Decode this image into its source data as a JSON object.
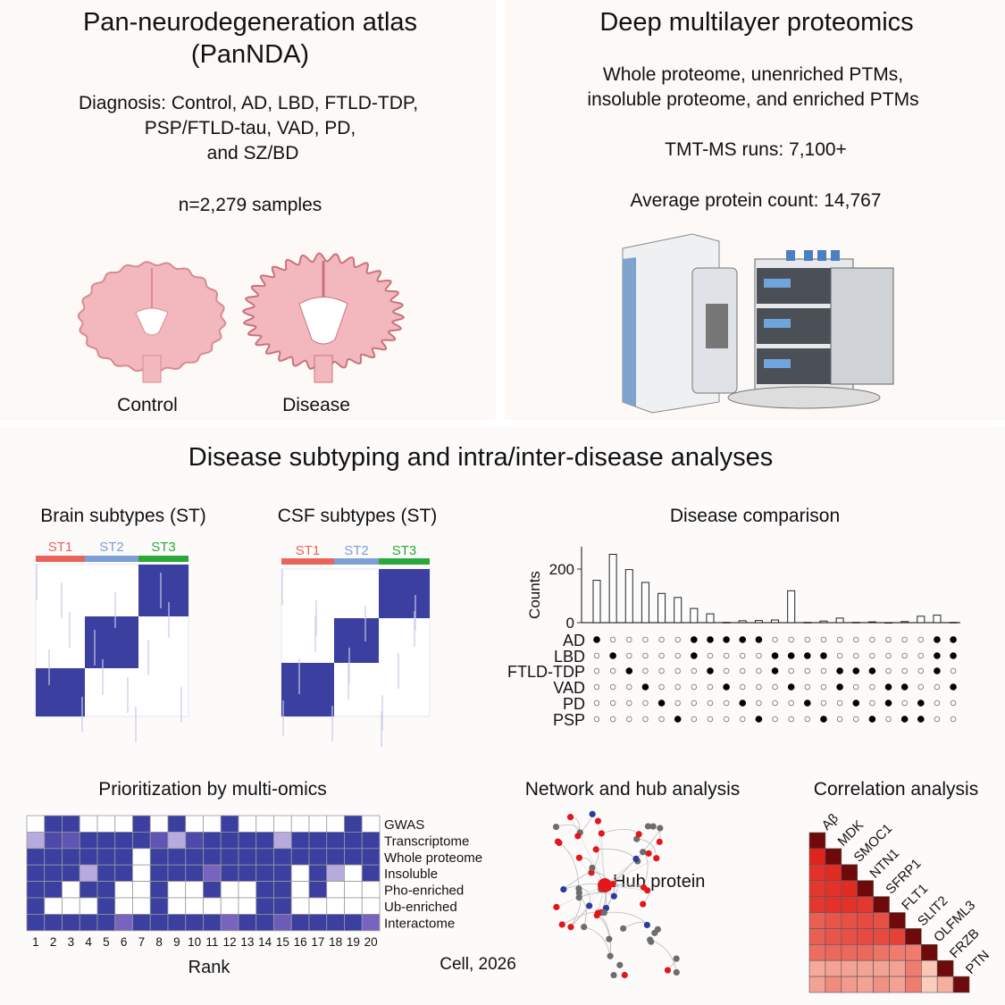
{
  "atlas": {
    "title_line1": "Pan-neurodegeneration atlas",
    "title_line2": "(PanNDA)",
    "diagnosis_line1": "Diagnosis: Control, AD, LBD, FTLD-TDP,",
    "diagnosis_line2": "PSP/FTLD-tau, VAD, PD,",
    "diagnosis_line3": "and SZ/BD",
    "samples": "n=2,279 samples",
    "brain_labels": [
      "Control",
      "Disease"
    ],
    "brain_color": "#f2b8bd"
  },
  "proteomics": {
    "title": "Deep multilayer proteomics",
    "line1": "Whole proteome, unenriched PTMs,",
    "line2": "insoluble proteome, and enriched PTMs",
    "runs": "TMT-MS runs: 7,100+",
    "avg_count": "Average protein count: 14,767"
  },
  "subtyping": {
    "title": "Disease subtyping and intra/inter-disease analyses",
    "brain_title": "Brain subtypes (ST)",
    "csf_title": "CSF subtypes (ST)",
    "subtypes": [
      "ST1",
      "ST2",
      "ST3"
    ],
    "subtype_colors": [
      "#e8635c",
      "#7b9fd6",
      "#2aa83a"
    ],
    "heatmap_color": "#3a3fa0"
  },
  "comparison": {
    "title": "Disease comparison",
    "ylabel": "Counts",
    "yticks": [
      0,
      200
    ],
    "ylim": [
      0,
      270
    ],
    "sets": [
      "AD",
      "LBD",
      "FTLD-TDP",
      "VAD",
      "PD",
      "PSP"
    ],
    "counts": [
      158,
      255,
      198,
      150,
      109,
      94,
      53,
      33,
      1,
      7,
      8,
      10,
      119,
      1,
      6,
      17,
      1,
      3,
      0,
      4,
      24,
      28,
      1
    ],
    "memberships": [
      [
        "AD"
      ],
      [
        "LBD"
      ],
      [
        "FTLD-TDP"
      ],
      [
        "VAD"
      ],
      [
        "PD"
      ],
      [
        "PSP"
      ],
      [
        "AD",
        "LBD"
      ],
      [
        "AD",
        "FTLD-TDP"
      ],
      [
        "AD",
        "VAD"
      ],
      [
        "AD",
        "PD"
      ],
      [
        "AD",
        "PSP"
      ],
      [
        "LBD",
        "FTLD-TDP"
      ],
      [
        "LBD",
        "VAD"
      ],
      [
        "LBD",
        "PD"
      ],
      [
        "LBD",
        "PSP"
      ],
      [
        "FTLD-TDP",
        "VAD"
      ],
      [
        "FTLD-TDP",
        "PD"
      ],
      [
        "FTLD-TDP",
        "PSP"
      ],
      [
        "VAD",
        "PD"
      ],
      [
        "VAD",
        "PSP"
      ],
      [
        "PD",
        "PSP"
      ],
      [
        "AD",
        "LBD",
        "FTLD-TDP"
      ],
      [
        "AD",
        "LBD",
        "VAD"
      ]
    ]
  },
  "prioritization": {
    "title": "Prioritization by multi-omics",
    "xlabel": "Rank",
    "ranks": [
      "1",
      "2",
      "3",
      "4",
      "5",
      "6",
      "7",
      "8",
      "9",
      "10",
      "11",
      "12",
      "13",
      "14",
      "15",
      "16",
      "17",
      "18",
      "19",
      "20"
    ],
    "rows": [
      "GWAS",
      "Transcriptome",
      "Whole proteome",
      "Insoluble",
      "Pho-enriched",
      "Ub-enriched",
      "Interactome"
    ],
    "values": [
      [
        0,
        1,
        1,
        0,
        0,
        0,
        1,
        0,
        1,
        0,
        0,
        1,
        0,
        0,
        0,
        0,
        0,
        0,
        1,
        0
      ],
      [
        0.3,
        0.85,
        0.7,
        1,
        1,
        1,
        1,
        0.7,
        0.3,
        0.85,
        1,
        1,
        1,
        1,
        0.3,
        1,
        1,
        1,
        1,
        1
      ],
      [
        1,
        1,
        1,
        1,
        1,
        1,
        0,
        1,
        1,
        1,
        1,
        1,
        1,
        1,
        1,
        1,
        1,
        1,
        1,
        1
      ],
      [
        1,
        1,
        1,
        0.3,
        1,
        1,
        0,
        1,
        1,
        1,
        0.5,
        1,
        1,
        1,
        1,
        0,
        1,
        0.3,
        0,
        1
      ],
      [
        1,
        1,
        0,
        1,
        1,
        0,
        0,
        1,
        0,
        0,
        1,
        0,
        0,
        1,
        1,
        0,
        1,
        0,
        0,
        0
      ],
      [
        1,
        0,
        0,
        0,
        1,
        0,
        0,
        1,
        0,
        0,
        0,
        0,
        0,
        1,
        1,
        0,
        0,
        0,
        0,
        0
      ],
      [
        1,
        1,
        1,
        1,
        1,
        0.5,
        1,
        1,
        1,
        1,
        1,
        0.5,
        1,
        1,
        0.6,
        1,
        1,
        1,
        1,
        0.5
      ]
    ]
  },
  "network": {
    "title": "Network and hub analysis",
    "hub_label": "Hub protein",
    "node_colors": [
      "#e3161b",
      "#6d6d6d",
      "#2f3a9e"
    ]
  },
  "correlation": {
    "title": "Correlation analysis",
    "labels": [
      "Aβ",
      "MDK",
      "SMOC1",
      "NTN1",
      "SFRP1",
      "FLT1",
      "SLIT2",
      "OLFML3",
      "FRZB",
      "PTN"
    ],
    "values": [
      [
        1
      ],
      [
        0.85,
        1
      ],
      [
        0.8,
        0.82,
        1
      ],
      [
        0.78,
        0.8,
        0.82,
        1
      ],
      [
        0.78,
        0.8,
        0.8,
        0.78,
        1
      ],
      [
        0.65,
        0.68,
        0.7,
        0.72,
        0.7,
        1
      ],
      [
        0.65,
        0.68,
        0.7,
        0.72,
        0.72,
        0.75,
        1
      ],
      [
        0.6,
        0.62,
        0.62,
        0.62,
        0.58,
        0.55,
        0.55,
        1
      ],
      [
        0.4,
        0.42,
        0.42,
        0.42,
        0.42,
        0.42,
        0.55,
        0.3,
        1
      ],
      [
        0.42,
        0.5,
        0.45,
        0.42,
        0.48,
        0.42,
        0.55,
        0.28,
        0.38,
        1
      ]
    ]
  },
  "citation": "Cell, 2026"
}
